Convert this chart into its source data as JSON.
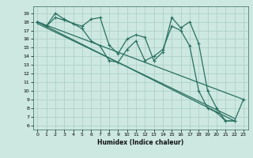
{
  "xlabel": "Humidex (Indice chaleur)",
  "bg_color": "#cce8e0",
  "grid_color": "#aaccc4",
  "line_color": "#2a7060",
  "xlim": [
    -0.5,
    23.5
  ],
  "ylim": [
    5.5,
    19.8
  ],
  "yticks": [
    6,
    7,
    8,
    9,
    10,
    11,
    12,
    13,
    14,
    15,
    16,
    17,
    18,
    19
  ],
  "xticks": [
    0,
    1,
    2,
    3,
    4,
    5,
    6,
    7,
    8,
    9,
    10,
    11,
    12,
    13,
    14,
    15,
    16,
    17,
    18,
    19,
    20,
    21,
    22,
    23
  ],
  "curve1_x": [
    0,
    1,
    2,
    3,
    4,
    5,
    6,
    7,
    8,
    9,
    10,
    11,
    12,
    13,
    14,
    15,
    16,
    17,
    18,
    19,
    20,
    21,
    22,
    23
  ],
  "curve1_y": [
    18.0,
    17.5,
    19.0,
    18.3,
    17.8,
    17.5,
    18.3,
    18.5,
    15.3,
    14.3,
    16.0,
    16.5,
    16.2,
    13.5,
    14.5,
    18.5,
    17.3,
    18.0,
    15.5,
    10.0,
    8.0,
    6.5,
    6.5,
    9.0
  ],
  "curve2_x": [
    0,
    1,
    2,
    3,
    4,
    5,
    6,
    7,
    8,
    9,
    10,
    11,
    12,
    13,
    14,
    15,
    16,
    17,
    18,
    19,
    20,
    21,
    22
  ],
  "curve2_y": [
    18.0,
    17.5,
    18.5,
    18.2,
    17.8,
    17.2,
    15.8,
    15.2,
    13.5,
    13.3,
    14.8,
    15.8,
    13.5,
    14.0,
    14.8,
    17.5,
    17.0,
    15.2,
    10.0,
    8.0,
    7.5,
    6.5,
    6.5
  ],
  "trend1_x": [
    0,
    23
  ],
  "trend1_y": [
    18.0,
    9.0
  ],
  "trend2_x": [
    0,
    22
  ],
  "trend2_y": [
    18.0,
    6.5
  ],
  "trend3_x": [
    0,
    22
  ],
  "trend3_y": [
    17.8,
    6.8
  ]
}
